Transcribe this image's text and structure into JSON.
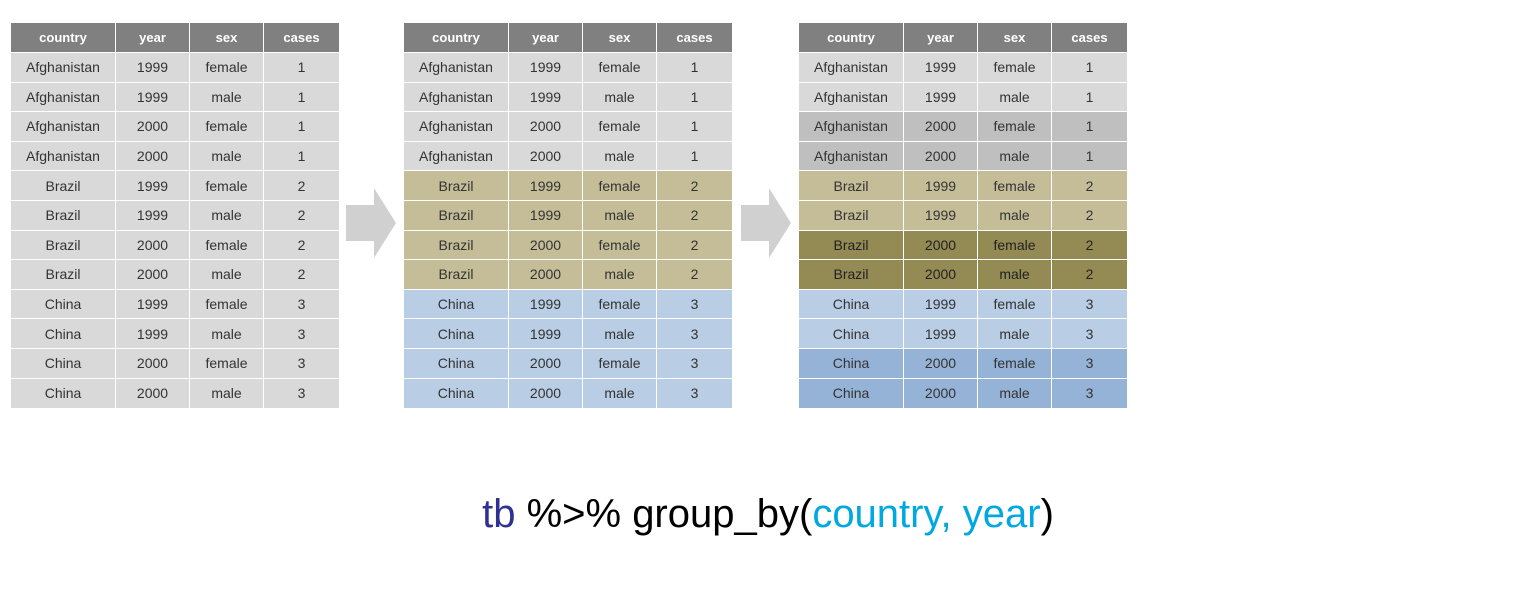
{
  "columns": [
    "country",
    "year",
    "sex",
    "cases"
  ],
  "rows": [
    [
      "Afghanistan",
      "1999",
      "female",
      "1"
    ],
    [
      "Afghanistan",
      "1999",
      "male",
      "1"
    ],
    [
      "Afghanistan",
      "2000",
      "female",
      "1"
    ],
    [
      "Afghanistan",
      "2000",
      "male",
      "1"
    ],
    [
      "Brazil",
      "1999",
      "female",
      "2"
    ],
    [
      "Brazil",
      "1999",
      "male",
      "2"
    ],
    [
      "Brazil",
      "2000",
      "female",
      "2"
    ],
    [
      "Brazil",
      "2000",
      "male",
      "2"
    ],
    [
      "China",
      "1999",
      "female",
      "3"
    ],
    [
      "China",
      "1999",
      "male",
      "3"
    ],
    [
      "China",
      "2000",
      "female",
      "3"
    ],
    [
      "China",
      "2000",
      "male",
      "3"
    ]
  ],
  "colors": {
    "header_bg": "#808080",
    "neutral": "#d9d9d9",
    "afghanistan_1999": "#d9d9d9",
    "afghanistan_2000": "#bfbfbf",
    "brazil_1999": "#c4bd97",
    "brazil_2000": "#948a54",
    "china_1999": "#b9cde5",
    "china_2000": "#95b3d7",
    "arrow": "#d0d0d0",
    "code_object": "#2e3192",
    "code_args": "#00a8e0"
  },
  "code": {
    "object": "tb",
    "pipe": " %>% ",
    "function": "group_by(",
    "args": "country, year",
    "close": ")"
  }
}
